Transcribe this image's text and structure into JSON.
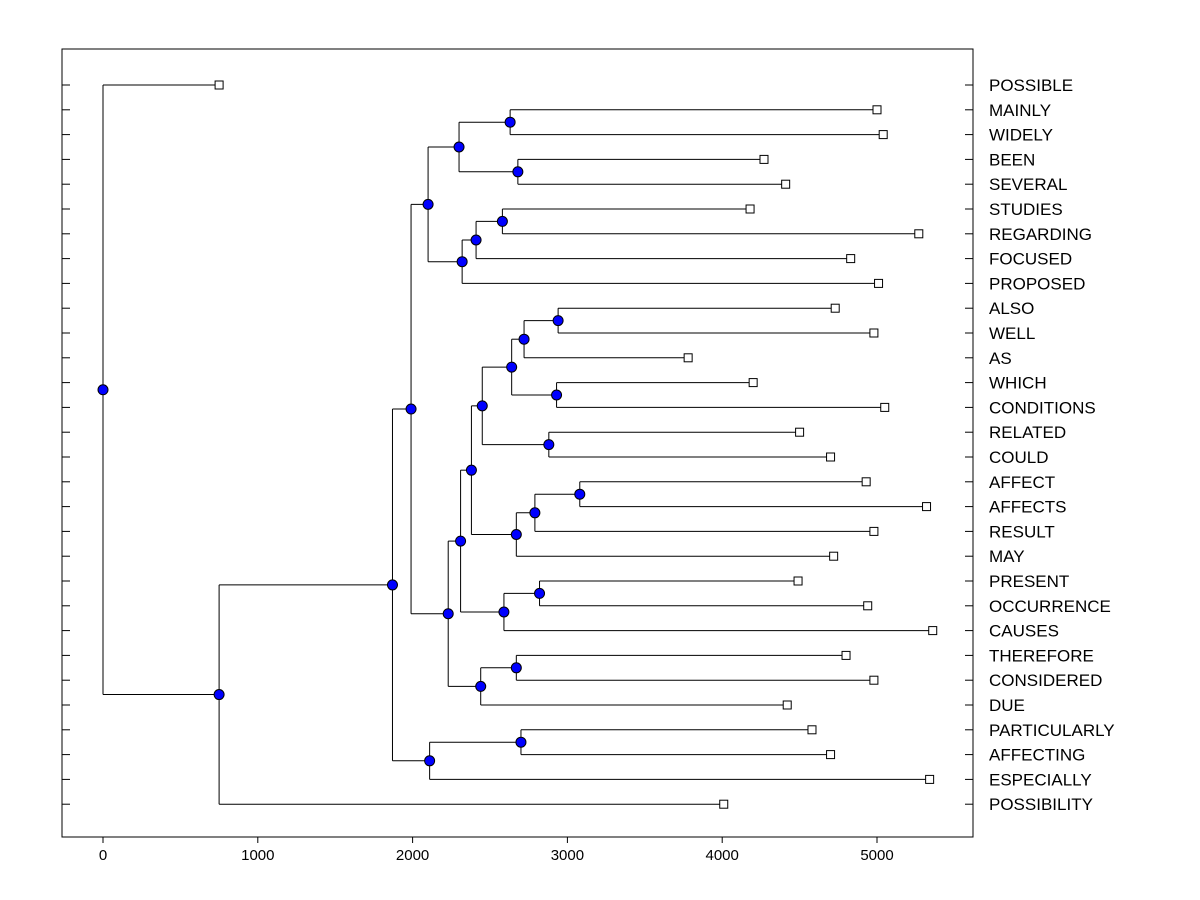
{
  "chart_data": {
    "type": "dendrogram",
    "title": "",
    "xlabel": "",
    "ylabel": "",
    "xlim": [
      -250,
      5600
    ],
    "x_ticks": [
      0,
      1000,
      2000,
      3000,
      4000,
      5000
    ],
    "x_tick_labels": [
      "0",
      "1000",
      "2000",
      "3000",
      "4000",
      "5000"
    ],
    "leaves": [
      {
        "label": "POSSIBLE",
        "value": 750
      },
      {
        "label": "MAINLY",
        "value": 5000
      },
      {
        "label": "WIDELY",
        "value": 5040
      },
      {
        "label": "BEEN",
        "value": 4270
      },
      {
        "label": "SEVERAL",
        "value": 4410
      },
      {
        "label": "STUDIES",
        "value": 4180
      },
      {
        "label": "REGARDING",
        "value": 5270
      },
      {
        "label": "FOCUSED",
        "value": 4830
      },
      {
        "label": "PROPOSED",
        "value": 5010
      },
      {
        "label": "ALSO",
        "value": 4730
      },
      {
        "label": "WELL",
        "value": 4980
      },
      {
        "label": "AS",
        "value": 3780
      },
      {
        "label": "WHICH",
        "value": 4200
      },
      {
        "label": "CONDITIONS",
        "value": 5050
      },
      {
        "label": "RELATED",
        "value": 4500
      },
      {
        "label": "COULD",
        "value": 4700
      },
      {
        "label": "AFFECT",
        "value": 4930
      },
      {
        "label": "AFFECTS",
        "value": 5320
      },
      {
        "label": "RESULT",
        "value": 4980
      },
      {
        "label": "MAY",
        "value": 4720
      },
      {
        "label": "PRESENT",
        "value": 4490
      },
      {
        "label": "OCCURRENCE",
        "value": 4940
      },
      {
        "label": "CAUSES",
        "value": 5360
      },
      {
        "label": "THEREFORE",
        "value": 4800
      },
      {
        "label": "CONSIDERED",
        "value": 4980
      },
      {
        "label": "DUE",
        "value": 4420
      },
      {
        "label": "PARTICULARLY",
        "value": 4580
      },
      {
        "label": "AFFECTING",
        "value": 4700
      },
      {
        "label": "ESPECIALLY",
        "value": 5340
      },
      {
        "label": "POSSIBILITY",
        "value": 4010
      }
    ],
    "merges": [
      {
        "value": 2630,
        "children": [
          "MAINLY",
          "WIDELY"
        ]
      },
      {
        "value": 2680,
        "children": [
          "BEEN",
          "SEVERAL"
        ]
      },
      {
        "value": 2300,
        "children": [
          0,
          1
        ]
      },
      {
        "value": 2580,
        "children": [
          "STUDIES",
          "REGARDING"
        ]
      },
      {
        "value": 2410,
        "children": [
          3,
          "FOCUSED"
        ]
      },
      {
        "value": 2320,
        "children": [
          4,
          "PROPOSED"
        ]
      },
      {
        "value": 2100,
        "children": [
          2,
          5
        ]
      },
      {
        "value": 2940,
        "children": [
          "ALSO",
          "WELL"
        ]
      },
      {
        "value": 2720,
        "children": [
          7,
          "AS"
        ]
      },
      {
        "value": 2930,
        "children": [
          "WHICH",
          "CONDITIONS"
        ]
      },
      {
        "value": 2640,
        "children": [
          8,
          9
        ]
      },
      {
        "value": 2880,
        "children": [
          "RELATED",
          "COULD"
        ]
      },
      {
        "value": 2450,
        "children": [
          10,
          11
        ]
      },
      {
        "value": 3080,
        "children": [
          "AFFECT",
          "AFFECTS"
        ]
      },
      {
        "value": 2790,
        "children": [
          13,
          "RESULT"
        ]
      },
      {
        "value": 2670,
        "children": [
          14,
          "MAY"
        ]
      },
      {
        "value": 2380,
        "children": [
          12,
          15
        ]
      },
      {
        "value": 2820,
        "children": [
          "PRESENT",
          "OCCURRENCE"
        ]
      },
      {
        "value": 2590,
        "children": [
          17,
          "CAUSES"
        ]
      },
      {
        "value": 2310,
        "children": [
          16,
          18
        ]
      },
      {
        "value": 2670,
        "children": [
          "THEREFORE",
          "CONSIDERED"
        ]
      },
      {
        "value": 2440,
        "children": [
          20,
          "DUE"
        ]
      },
      {
        "value": 2230,
        "children": [
          19,
          21
        ]
      },
      {
        "value": 1990,
        "children": [
          6,
          22
        ]
      },
      {
        "value": 2700,
        "children": [
          "PARTICULARLY",
          "AFFECTING"
        ]
      },
      {
        "value": 2110,
        "children": [
          24,
          "ESPECIALLY"
        ]
      },
      {
        "value": 1870,
        "children": [
          23,
          25
        ]
      },
      {
        "value": 750,
        "children": [
          26,
          "POSSIBILITY"
        ]
      },
      {
        "value": 0,
        "children": [
          "POSSIBLE",
          27
        ]
      }
    ],
    "grid": false,
    "legend": "none",
    "colors": {
      "node": "#0000ff",
      "line": "#000000",
      "leaf_marker": "#ffffff"
    }
  }
}
